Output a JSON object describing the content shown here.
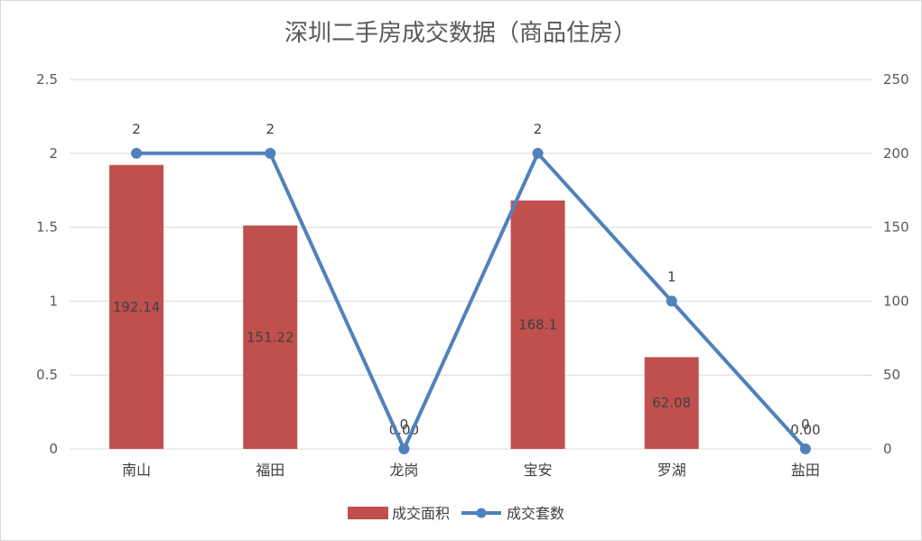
{
  "chart_data": {
    "type": "bar",
    "title": "深圳二手房成交数据（商品住房）",
    "categories": [
      "南山",
      "福田",
      "龙岗",
      "宝安",
      "罗湖",
      "盐田"
    ],
    "series": [
      {
        "name": "成交面积",
        "kind": "bar",
        "axis": "right",
        "values": [
          192.14,
          151.22,
          0,
          168.1,
          62.08,
          0
        ],
        "labels": [
          "192.14",
          "151.22",
          "0.00",
          "168.1",
          "62.08",
          "0.00"
        ],
        "color": "#c0504d"
      },
      {
        "name": "成交套数",
        "kind": "line",
        "axis": "left",
        "values": [
          2,
          2,
          0,
          2,
          1,
          0
        ],
        "labels": [
          "2",
          "2",
          "0",
          "2",
          "1",
          "0"
        ],
        "color": "#4f81bd"
      }
    ],
    "y_left": {
      "min": 0,
      "max": 2.5,
      "ticks": [
        "0",
        "0.5",
        "1",
        "1.5",
        "2",
        "2.5"
      ]
    },
    "y_right": {
      "min": 0,
      "max": 250,
      "ticks": [
        "0",
        "50",
        "100",
        "150",
        "200",
        "250"
      ]
    },
    "grid": true,
    "legend_position": "bottom",
    "xlabel": "",
    "ylabel": ""
  }
}
